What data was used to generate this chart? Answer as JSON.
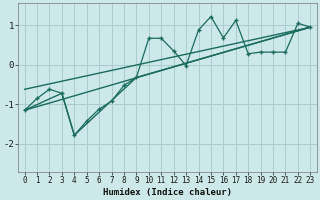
{
  "bg_color": "#cce8e8",
  "grid_color": "#aacccc",
  "line_color": "#1a6b5e",
  "xlabel": "Humidex (Indice chaleur)",
  "xlim": [
    -0.5,
    23.5
  ],
  "ylim": [
    -2.7,
    1.55
  ],
  "yticks": [
    -2,
    -1,
    0,
    1
  ],
  "xticks": [
    0,
    1,
    2,
    3,
    4,
    5,
    6,
    7,
    8,
    9,
    10,
    11,
    12,
    13,
    14,
    15,
    16,
    17,
    18,
    19,
    20,
    21,
    22,
    23
  ],
  "zigzag_x": [
    0,
    1,
    2,
    3,
    4,
    5,
    6,
    7,
    8,
    9,
    10,
    11,
    12,
    13,
    14,
    15,
    16,
    17,
    18,
    19,
    20,
    21,
    22,
    23
  ],
  "zigzag_y": [
    -1.15,
    -0.85,
    -0.62,
    -0.72,
    -1.78,
    -1.42,
    -1.12,
    -0.92,
    -0.52,
    -0.32,
    0.67,
    0.67,
    0.35,
    -0.02,
    0.88,
    1.22,
    0.68,
    1.12,
    0.28,
    0.32,
    0.32,
    0.32,
    1.05,
    0.95
  ],
  "line1_x": [
    0,
    23
  ],
  "line1_y": [
    -1.15,
    0.95
  ],
  "line2_x": [
    0,
    23
  ],
  "line2_y": [
    -0.62,
    0.95
  ],
  "line3_x": [
    0,
    3,
    4,
    9,
    23
  ],
  "line3_y": [
    -1.15,
    -0.72,
    -1.78,
    -0.32,
    0.95
  ]
}
